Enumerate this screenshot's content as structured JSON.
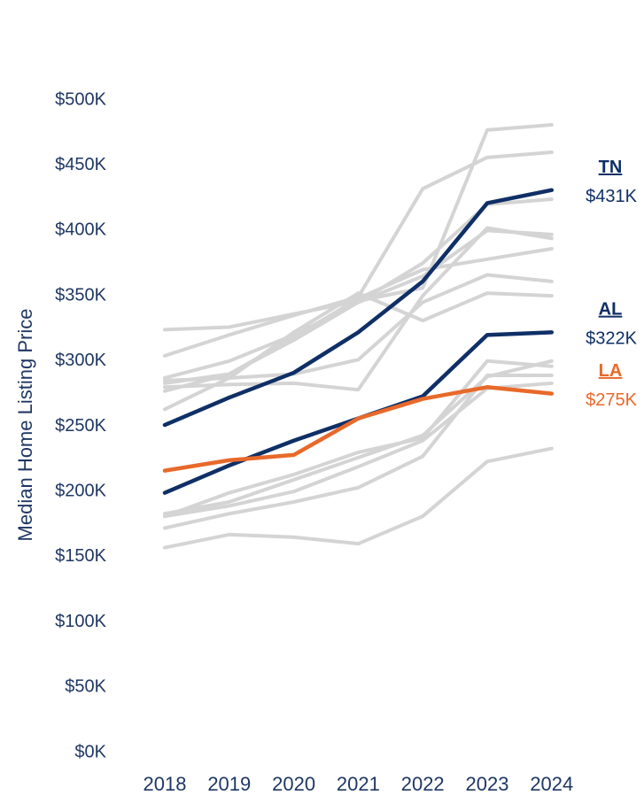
{
  "chart_data": {
    "type": "line",
    "ylabel": "Median Home Listing Price",
    "categories": [
      "2018",
      "2019",
      "2020",
      "2021",
      "2022",
      "2023",
      "2024"
    ],
    "ylim": [
      0,
      500
    ],
    "yticks": [
      {
        "value": 0,
        "label": "$0K"
      },
      {
        "value": 50,
        "label": "$50K"
      },
      {
        "value": 100,
        "label": "$100K"
      },
      {
        "value": 150,
        "label": "$150K"
      },
      {
        "value": 200,
        "label": "$200K"
      },
      {
        "value": 250,
        "label": "$250K"
      },
      {
        "value": 300,
        "label": "$300K"
      },
      {
        "value": 350,
        "label": "$350K"
      },
      {
        "value": 400,
        "label": "$400K"
      },
      {
        "value": 450,
        "label": "$450K"
      },
      {
        "value": 500,
        "label": "$500K"
      }
    ],
    "grid": false,
    "series": [
      {
        "color": "#d4d4d4",
        "values": [
          324,
          326,
          336,
          346,
          356,
          477,
          481
        ]
      },
      {
        "color": "#d4d4d4",
        "values": [
          304,
          320,
          335,
          349,
          432,
          456,
          460
        ]
      },
      {
        "color": "#d4d4d4",
        "values": [
          287,
          300,
          320,
          345,
          365,
          400,
          397
        ]
      },
      {
        "color": "#d4d4d4",
        "values": [
          283,
          290,
          316,
          345,
          375,
          420,
          424
        ]
      },
      {
        "color": "#d4d4d4",
        "values": [
          280,
          282,
          283,
          278,
          350,
          402,
          394
        ]
      },
      {
        "color": "#d4d4d4",
        "values": [
          277,
          290,
          318,
          348,
          370,
          378,
          386
        ]
      },
      {
        "color": "#d4d4d4",
        "values": [
          285,
          287,
          290,
          301,
          345,
          366,
          361
        ]
      },
      {
        "color": "#d4d4d4",
        "values": [
          263,
          287,
          322,
          352,
          331,
          352,
          350
        ]
      },
      {
        "color": "#d4d4d4",
        "values": [
          181,
          199,
          213,
          230,
          241,
          300,
          296
        ]
      },
      {
        "color": "#d4d4d4",
        "values": [
          183,
          192,
          209,
          226,
          243,
          288,
          300
        ]
      },
      {
        "color": "#d4d4d4",
        "values": [
          172,
          183,
          192,
          203,
          227,
          289,
          289
        ]
      },
      {
        "color": "#d4d4d4",
        "values": [
          181,
          189,
          200,
          219,
          239,
          279,
          283
        ]
      },
      {
        "color": "#d4d4d4",
        "values": [
          157,
          167,
          165,
          160,
          181,
          223,
          233
        ]
      },
      {
        "name": "TN",
        "color": "#0f2f66",
        "values": [
          251,
          272,
          291,
          322,
          361,
          421,
          431
        ],
        "value_labels": [
          null,
          null,
          null,
          null,
          null,
          null,
          "$431K"
        ]
      },
      {
        "name": "AL",
        "color": "#0f2f66",
        "values": [
          199,
          220,
          239,
          256,
          273,
          320,
          322
        ],
        "value_labels": [
          null,
          null,
          null,
          null,
          null,
          null,
          "$322K"
        ]
      },
      {
        "name": "LA",
        "color": "#e8692a",
        "values": [
          216,
          224,
          228,
          256,
          271,
          280,
          275
        ],
        "value_labels": [
          null,
          null,
          null,
          null,
          null,
          null,
          "$275K"
        ]
      }
    ]
  }
}
